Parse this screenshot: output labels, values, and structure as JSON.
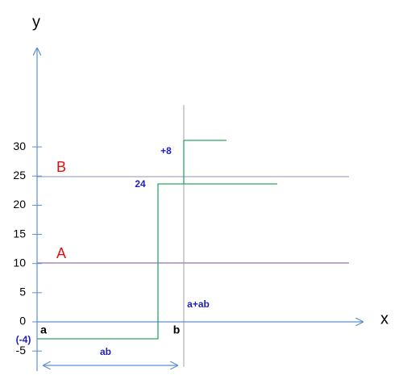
{
  "axes": {
    "y_label": "y",
    "x_label": "x",
    "y_ticks": [
      "30",
      "25",
      "20",
      "15",
      "10",
      "5",
      "0",
      "-5"
    ]
  },
  "levels": {
    "B": "B",
    "A": "A"
  },
  "annotations": {
    "step_up": "+8",
    "level": "24",
    "a_plus_ab": "a+ab",
    "a": "a",
    "b": "b",
    "start": "(-4)",
    "span": "ab"
  }
}
